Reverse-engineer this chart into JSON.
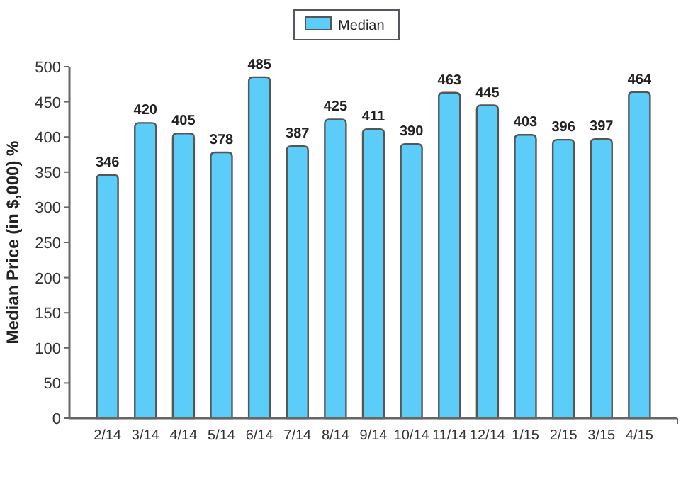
{
  "chart_data": {
    "type": "bar",
    "ylabel": "Median Price (in $,000) %",
    "categories": [
      "2/14",
      "3/14",
      "4/14",
      "5/14",
      "6/14",
      "7/14",
      "8/14",
      "9/14",
      "10/14",
      "11/14",
      "12/14",
      "1/15",
      "2/15",
      "3/15",
      "4/15"
    ],
    "series": [
      {
        "name": "Median",
        "color": "#5bcdf8",
        "values": [
          346,
          420,
          405,
          378,
          485,
          387,
          425,
          411,
          390,
          463,
          445,
          403,
          396,
          397,
          464
        ]
      }
    ],
    "ylim": [
      0,
      500
    ],
    "yticks": [
      0,
      50,
      100,
      150,
      200,
      250,
      300,
      350,
      400,
      450,
      500
    ],
    "data_labels": true,
    "legend": "top",
    "grid": false
  }
}
